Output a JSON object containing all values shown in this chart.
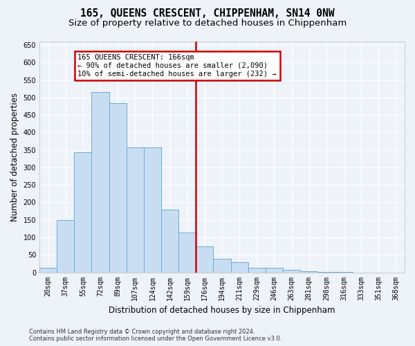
{
  "title": "165, QUEENS CRESCENT, CHIPPENHAM, SN14 0NW",
  "subtitle": "Size of property relative to detached houses in Chippenham",
  "xlabel": "Distribution of detached houses by size in Chippenham",
  "ylabel": "Number of detached properties",
  "categories": [
    "20sqm",
    "37sqm",
    "55sqm",
    "72sqm",
    "89sqm",
    "107sqm",
    "124sqm",
    "142sqm",
    "159sqm",
    "176sqm",
    "194sqm",
    "211sqm",
    "229sqm",
    "246sqm",
    "263sqm",
    "281sqm",
    "298sqm",
    "316sqm",
    "333sqm",
    "351sqm",
    "368sqm"
  ],
  "values": [
    13,
    150,
    343,
    515,
    484,
    357,
    357,
    179,
    114,
    75,
    38,
    29,
    12,
    12,
    8,
    3,
    1,
    1,
    0,
    0,
    0
  ],
  "bar_color": "#c9ddf2",
  "bar_edge_color": "#6aaed6",
  "vline_x": 8.5,
  "annotation_line1": "165 QUEENS CRESCENT: 166sqm",
  "annotation_line2": "← 90% of detached houses are smaller (2,090)",
  "annotation_line3": "10% of semi-detached houses are larger (232) →",
  "annotation_box_color": "#ffffff",
  "annotation_box_edge": "#cc0000",
  "footnote1": "Contains HM Land Registry data © Crown copyright and database right 2024.",
  "footnote2": "Contains public sector information licensed under the Open Government Licence v3.0.",
  "ylim": [
    0,
    660
  ],
  "yticks": [
    0,
    50,
    100,
    150,
    200,
    250,
    300,
    350,
    400,
    450,
    500,
    550,
    600,
    650
  ],
  "background_color": "#eef2f9",
  "grid_color": "#ffffff",
  "title_fontsize": 10.5,
  "subtitle_fontsize": 9.5,
  "axis_label_fontsize": 8.5,
  "tick_fontsize": 7,
  "footnote_fontsize": 6
}
